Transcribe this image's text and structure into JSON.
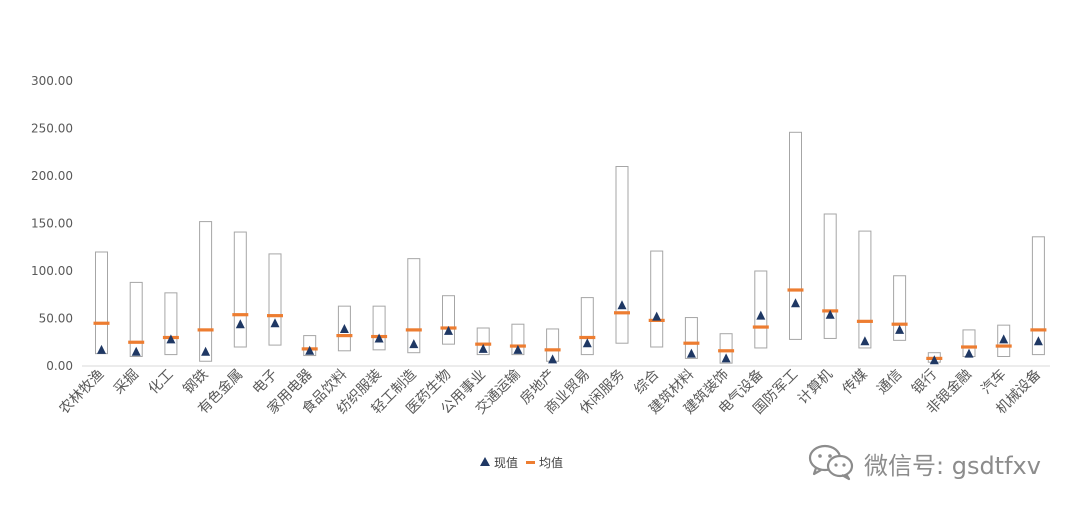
{
  "chart_data": {
    "type": "range-bar",
    "title": "",
    "xlabel": "",
    "ylabel": "",
    "ylim": [
      0,
      300
    ],
    "yticks": [
      "0.00",
      "50.00",
      "100.00",
      "150.00",
      "200.00",
      "250.00",
      "300.00"
    ],
    "grid": false,
    "legend_position": "bottom-center",
    "legend": {
      "current": "现值",
      "average": "均值"
    },
    "colors": {
      "box": "#a6a6a6",
      "current": "#1f3864",
      "average": "#ed7d31"
    },
    "categories": [
      "农林牧渔",
      "采掘",
      "化工",
      "钢铁",
      "有色金属",
      "电子",
      "家用电器",
      "食品饮料",
      "纺织服装",
      "轻工制造",
      "医药生物",
      "公用事业",
      "交通运输",
      "房地产",
      "商业贸易",
      "休闲服务",
      "综合",
      "建筑材料",
      "建筑装饰",
      "电气设备",
      "国防军工",
      "计算机",
      "传媒",
      "通信",
      "银行",
      "非银金融",
      "汽车",
      "机械设备"
    ],
    "series": [
      {
        "name": "max",
        "values": [
          120,
          88,
          77,
          152,
          141,
          118,
          32,
          63,
          63,
          113,
          74,
          40,
          44,
          39,
          72,
          210,
          121,
          51,
          34,
          100,
          246,
          160,
          142,
          95,
          14,
          38,
          43,
          136
        ]
      },
      {
        "name": "min",
        "values": [
          13,
          10,
          12,
          5,
          20,
          22,
          11,
          16,
          17,
          14,
          23,
          12,
          12,
          5,
          12,
          24,
          20,
          8,
          3,
          19,
          28,
          29,
          19,
          27,
          4,
          10,
          10,
          12
        ]
      },
      {
        "name": "现值",
        "values": [
          17,
          15,
          28,
          15,
          44,
          45,
          16,
          39,
          29,
          23,
          37,
          18,
          17,
          7,
          24,
          64,
          52,
          13,
          8,
          53,
          66,
          54,
          26,
          38,
          6,
          13,
          28,
          26
        ]
      },
      {
        "name": "均值",
        "values": [
          45,
          25,
          30,
          38,
          54,
          53,
          18,
          32,
          31,
          38,
          40,
          23,
          21,
          17,
          30,
          56,
          48,
          24,
          16,
          41,
          80,
          58,
          47,
          44,
          8,
          20,
          21,
          38
        ]
      }
    ]
  },
  "watermark": {
    "icon": "wechat-icon",
    "text": "微信号: gsdtfxv"
  }
}
